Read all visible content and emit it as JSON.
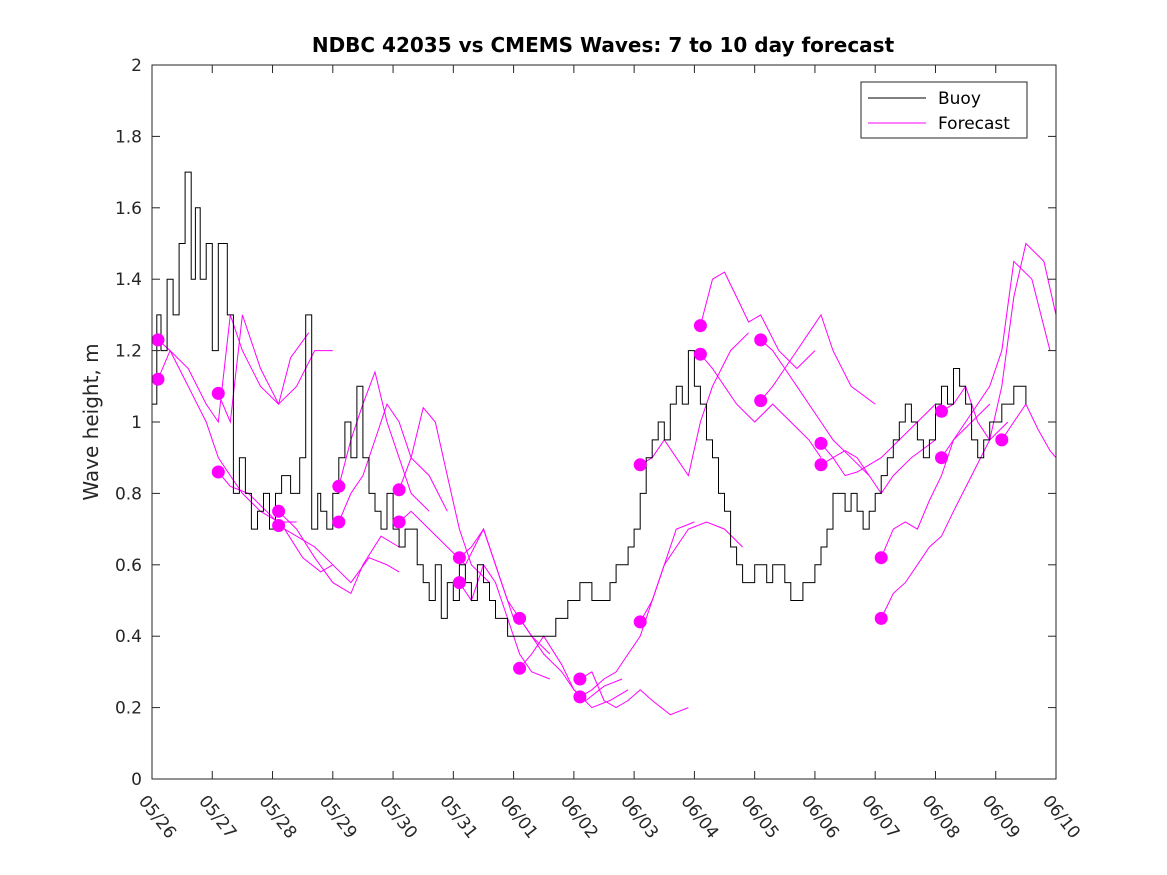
{
  "chart_data": {
    "type": "line",
    "title": "NDBC 42035 vs CMEMS Waves: 7 to 10 day forecast",
    "xlabel": "",
    "ylabel": "Wave height, m",
    "xlim": [
      0,
      15
    ],
    "ylim": [
      0,
      2
    ],
    "x_unit": "days from 05/26",
    "x_ticks": [
      0,
      1,
      2,
      3,
      4,
      5,
      6,
      7,
      8,
      9,
      10,
      11,
      12,
      13,
      14,
      15
    ],
    "x_tick_labels": [
      "05/26",
      "05/27",
      "05/28",
      "05/29",
      "05/30",
      "05/31",
      "06/01",
      "06/02",
      "06/03",
      "06/04",
      "06/05",
      "06/06",
      "06/07",
      "06/08",
      "06/09",
      "06/10"
    ],
    "y_ticks": [
      0,
      0.2,
      0.4,
      0.6,
      0.8,
      1,
      1.2,
      1.4,
      1.6,
      1.8,
      2
    ],
    "y_tick_labels": [
      "0",
      "0.2",
      "0.4",
      "0.6",
      "0.8",
      "1",
      "1.2",
      "1.4",
      "1.6",
      "1.8",
      "2"
    ],
    "grid": false,
    "legend": {
      "placement": "top-right",
      "entries": [
        "Buoy",
        "Forecast"
      ]
    },
    "colors": {
      "buoy": "#000000",
      "forecast": "#ff00ff"
    },
    "buoy": {
      "name": "Buoy",
      "x": [
        0,
        0.08,
        0.15,
        0.25,
        0.35,
        0.45,
        0.55,
        0.65,
        0.72,
        0.8,
        0.9,
        1.0,
        1.1,
        1.25,
        1.35,
        1.45,
        1.55,
        1.65,
        1.75,
        1.85,
        1.95,
        2.05,
        2.15,
        2.3,
        2.45,
        2.55,
        2.65,
        2.75,
        2.8,
        2.9,
        3.0,
        3.1,
        3.2,
        3.3,
        3.4,
        3.5,
        3.6,
        3.7,
        3.8,
        3.9,
        4.0,
        4.1,
        4.2,
        4.3,
        4.4,
        4.5,
        4.6,
        4.7,
        4.8,
        4.9,
        5.0,
        5.1,
        5.2,
        5.3,
        5.4,
        5.5,
        5.6,
        5.7,
        5.8,
        5.9,
        6.0,
        6.1,
        6.2,
        6.3,
        6.5,
        6.7,
        6.9,
        7.0,
        7.1,
        7.2,
        7.3,
        7.4,
        7.5,
        7.6,
        7.7,
        7.8,
        7.9,
        8.0,
        8.1,
        8.2,
        8.3,
        8.4,
        8.5,
        8.6,
        8.7,
        8.8,
        8.9,
        9.0,
        9.1,
        9.2,
        9.3,
        9.4,
        9.5,
        9.6,
        9.7,
        9.8,
        9.9,
        10.0,
        10.1,
        10.2,
        10.3,
        10.4,
        10.5,
        10.6,
        10.7,
        10.8,
        10.9,
        11.0,
        11.1,
        11.2,
        11.3,
        11.4,
        11.5,
        11.6,
        11.7,
        11.8,
        11.9,
        12.0,
        12.1,
        12.2,
        12.3,
        12.4,
        12.5,
        12.6,
        12.7,
        12.8,
        12.9,
        13.0,
        13.1,
        13.2,
        13.3,
        13.4,
        13.5,
        13.6,
        13.7,
        13.8,
        13.9,
        14.0,
        14.1,
        14.2,
        14.3,
        14.4,
        14.5
      ],
      "values": [
        1.05,
        1.3,
        1.2,
        1.4,
        1.3,
        1.5,
        1.7,
        1.4,
        1.6,
        1.4,
        1.5,
        1.2,
        1.5,
        1.3,
        0.8,
        0.9,
        0.8,
        0.7,
        0.75,
        0.8,
        0.7,
        0.8,
        0.85,
        0.8,
        0.9,
        1.3,
        0.7,
        0.8,
        0.75,
        0.7,
        0.8,
        0.9,
        1.0,
        0.9,
        1.1,
        0.9,
        0.8,
        0.75,
        0.7,
        0.8,
        0.7,
        0.65,
        0.7,
        0.7,
        0.6,
        0.55,
        0.5,
        0.6,
        0.45,
        0.55,
        0.5,
        0.6,
        0.55,
        0.5,
        0.6,
        0.55,
        0.5,
        0.45,
        0.45,
        0.4,
        0.4,
        0.4,
        0.4,
        0.4,
        0.4,
        0.45,
        0.5,
        0.5,
        0.55,
        0.55,
        0.5,
        0.5,
        0.5,
        0.55,
        0.6,
        0.6,
        0.65,
        0.7,
        0.8,
        0.9,
        0.95,
        1.0,
        0.95,
        1.05,
        1.1,
        1.05,
        1.2,
        1.1,
        1.05,
        0.95,
        0.9,
        0.8,
        0.75,
        0.65,
        0.6,
        0.55,
        0.55,
        0.6,
        0.6,
        0.55,
        0.6,
        0.6,
        0.55,
        0.5,
        0.5,
        0.55,
        0.55,
        0.6,
        0.65,
        0.7,
        0.8,
        0.8,
        0.75,
        0.8,
        0.75,
        0.7,
        0.75,
        0.8,
        0.85,
        0.9,
        0.95,
        1.0,
        1.05,
        1.0,
        0.95,
        0.9,
        0.95,
        1.05,
        1.1,
        1.05,
        1.15,
        1.1,
        1.05,
        0.95,
        0.9,
        0.95,
        1.0,
        1.0,
        1.05,
        1.05,
        1.1,
        1.1,
        1.05
      ]
    },
    "forecasts": [
      {
        "x": [
          0.1,
          0.3,
          0.6,
          0.9,
          1.1,
          1.3,
          1.5,
          1.8,
          2.1,
          2.4
        ],
        "values": [
          1.23,
          1.2,
          1.1,
          1.0,
          0.9,
          0.85,
          0.8,
          0.75,
          0.72,
          0.72
        ]
      },
      {
        "x": [
          0.1,
          0.3,
          0.6,
          0.9,
          1.1,
          1.3,
          1.5,
          1.8,
          2.1,
          2.3,
          2.6
        ],
        "values": [
          1.12,
          1.2,
          1.15,
          1.05,
          1.0,
          1.3,
          1.2,
          1.1,
          1.05,
          1.18,
          1.25
        ]
      },
      {
        "x": [
          1.1,
          1.3,
          1.5,
          1.8,
          2.1,
          2.4,
          2.7,
          3.0
        ],
        "values": [
          1.08,
          1.0,
          1.3,
          1.15,
          1.05,
          1.1,
          1.2,
          1.2
        ]
      },
      {
        "x": [
          1.1,
          1.3,
          1.6,
          1.9,
          2.2,
          2.5,
          2.8,
          3.0
        ],
        "values": [
          0.86,
          0.82,
          0.8,
          0.75,
          0.7,
          0.62,
          0.58,
          0.6
        ]
      },
      {
        "x": [
          2.1,
          2.4,
          2.7,
          3.0,
          3.3,
          3.5,
          3.8,
          4.1
        ],
        "values": [
          0.75,
          0.7,
          0.62,
          0.55,
          0.52,
          0.6,
          0.68,
          0.65
        ]
      },
      {
        "x": [
          2.1,
          2.4,
          2.7,
          3.0,
          3.3,
          3.6,
          3.9,
          4.1
        ],
        "values": [
          0.71,
          0.68,
          0.65,
          0.6,
          0.55,
          0.62,
          0.6,
          0.58
        ]
      },
      {
        "x": [
          3.1,
          3.3,
          3.5,
          3.7,
          3.9,
          4.1,
          4.3,
          4.6
        ],
        "values": [
          0.82,
          0.95,
          1.05,
          1.14,
          1.0,
          0.9,
          0.8,
          0.75
        ]
      },
      {
        "x": [
          3.1,
          3.3,
          3.5,
          3.7,
          3.9,
          4.1,
          4.3,
          4.6,
          4.9
        ],
        "values": [
          0.72,
          0.8,
          0.85,
          0.95,
          1.05,
          1.0,
          0.9,
          0.85,
          0.75
        ]
      },
      {
        "x": [
          4.1,
          4.3,
          4.5,
          4.7,
          4.9,
          5.1,
          5.3,
          5.6
        ],
        "values": [
          0.81,
          0.9,
          1.04,
          1.0,
          0.85,
          0.7,
          0.6,
          0.55
        ]
      },
      {
        "x": [
          4.1,
          4.3,
          4.6,
          4.9,
          5.2,
          5.5,
          5.8,
          6.0
        ],
        "values": [
          0.72,
          0.75,
          0.7,
          0.65,
          0.6,
          0.7,
          0.55,
          0.45
        ]
      },
      {
        "x": [
          5.1,
          5.3,
          5.5,
          5.7,
          5.9,
          6.1,
          6.3,
          6.6
        ],
        "values": [
          0.62,
          0.65,
          0.7,
          0.6,
          0.5,
          0.45,
          0.4,
          0.35
        ]
      },
      {
        "x": [
          5.1,
          5.3,
          5.5,
          5.7,
          5.9,
          6.1,
          6.3,
          6.6
        ],
        "values": [
          0.55,
          0.5,
          0.6,
          0.55,
          0.45,
          0.35,
          0.3,
          0.28
        ]
      },
      {
        "x": [
          6.1,
          6.3,
          6.5,
          6.8,
          7.0,
          7.2,
          7.5,
          7.8
        ],
        "values": [
          0.45,
          0.4,
          0.35,
          0.3,
          0.25,
          0.22,
          0.26,
          0.28
        ]
      },
      {
        "x": [
          6.1,
          6.3,
          6.5,
          6.8,
          7.0,
          7.3,
          7.6,
          7.9
        ],
        "values": [
          0.31,
          0.35,
          0.4,
          0.32,
          0.25,
          0.2,
          0.22,
          0.25
        ]
      },
      {
        "x": [
          7.1,
          7.3,
          7.5,
          7.7,
          7.9,
          8.1,
          8.3,
          8.6,
          8.9
        ],
        "values": [
          0.28,
          0.3,
          0.22,
          0.2,
          0.22,
          0.25,
          0.22,
          0.18,
          0.2
        ]
      },
      {
        "x": [
          7.1,
          7.3,
          7.5,
          7.7,
          7.9,
          8.1,
          8.3,
          8.5,
          8.7,
          9.0
        ],
        "values": [
          0.23,
          0.25,
          0.28,
          0.3,
          0.35,
          0.4,
          0.5,
          0.6,
          0.7,
          0.72
        ]
      },
      {
        "x": [
          8.1,
          8.3,
          8.5,
          8.7,
          8.9,
          9.1,
          9.3,
          9.6,
          9.9
        ],
        "values": [
          0.88,
          0.9,
          0.95,
          0.9,
          0.85,
          1.0,
          1.1,
          1.2,
          1.25
        ]
      },
      {
        "x": [
          8.1,
          8.3,
          8.5,
          8.7,
          8.9,
          9.2,
          9.5,
          9.8
        ],
        "values": [
          0.44,
          0.5,
          0.6,
          0.65,
          0.7,
          0.72,
          0.7,
          0.65
        ]
      },
      {
        "x": [
          9.1,
          9.3,
          9.5,
          9.7,
          9.9,
          10.1,
          10.4,
          10.7,
          11.0
        ],
        "values": [
          1.27,
          1.4,
          1.42,
          1.35,
          1.28,
          1.3,
          1.2,
          1.15,
          1.2
        ]
      },
      {
        "x": [
          9.1,
          9.3,
          9.5,
          9.7,
          10.0,
          10.3,
          10.6,
          10.9,
          11.1
        ],
        "values": [
          1.19,
          1.15,
          1.1,
          1.05,
          1.0,
          1.05,
          1.0,
          0.95,
          0.9
        ]
      },
      {
        "x": [
          10.1,
          10.3,
          10.5,
          10.7,
          10.9,
          11.1,
          11.3,
          11.6,
          11.9
        ],
        "values": [
          1.23,
          1.2,
          1.15,
          1.1,
          1.05,
          1.0,
          0.95,
          0.9,
          0.85
        ]
      },
      {
        "x": [
          10.1,
          10.3,
          10.5,
          10.7,
          10.9,
          11.1,
          11.3,
          11.6,
          12.0
        ],
        "values": [
          1.06,
          1.1,
          1.15,
          1.2,
          1.25,
          1.3,
          1.2,
          1.1,
          1.05
        ]
      },
      {
        "x": [
          11.1,
          11.3,
          11.5,
          11.7,
          11.9,
          12.1,
          12.4,
          12.7,
          13.0
        ],
        "values": [
          0.94,
          0.9,
          0.85,
          0.86,
          0.88,
          0.9,
          0.95,
          1.0,
          1.05
        ]
      },
      {
        "x": [
          11.1,
          11.3,
          11.5,
          11.7,
          11.9,
          12.1,
          12.3,
          12.6,
          13.0
        ],
        "values": [
          0.88,
          0.9,
          0.92,
          0.9,
          0.85,
          0.8,
          0.85,
          0.9,
          0.95
        ]
      },
      {
        "x": [
          12.1,
          12.3,
          12.5,
          12.7,
          12.9,
          13.1,
          13.3,
          13.6,
          13.9
        ],
        "values": [
          0.62,
          0.7,
          0.72,
          0.7,
          0.78,
          0.85,
          0.95,
          1.0,
          1.05
        ]
      },
      {
        "x": [
          12.1,
          12.3,
          12.5,
          12.7,
          12.9,
          13.1,
          13.3,
          13.6,
          13.9,
          14.2
        ],
        "values": [
          0.45,
          0.52,
          0.55,
          0.6,
          0.65,
          0.68,
          0.75,
          0.85,
          0.95,
          1.0
        ]
      },
      {
        "x": [
          13.1,
          13.3,
          13.5,
          13.7,
          13.9,
          14.1,
          14.3,
          14.5,
          14.8,
          15.0
        ],
        "values": [
          1.03,
          1.05,
          1.1,
          1.0,
          0.95,
          1.1,
          1.35,
          1.5,
          1.45,
          1.3
        ]
      },
      {
        "x": [
          13.1,
          13.3,
          13.5,
          13.7,
          13.9,
          14.1,
          14.3,
          14.6,
          14.9
        ],
        "values": [
          0.9,
          0.95,
          1.0,
          1.05,
          1.1,
          1.2,
          1.45,
          1.4,
          1.2
        ]
      },
      {
        "x": [
          14.1,
          14.3,
          14.5,
          14.7,
          14.9,
          15.0
        ],
        "values": [
          0.95,
          1.0,
          1.05,
          0.98,
          0.92,
          0.9
        ]
      }
    ],
    "markers": [
      {
        "x": 0.1,
        "y": 1.23
      },
      {
        "x": 0.1,
        "y": 1.12
      },
      {
        "x": 1.1,
        "y": 1.08
      },
      {
        "x": 1.1,
        "y": 0.86
      },
      {
        "x": 2.1,
        "y": 0.75
      },
      {
        "x": 2.1,
        "y": 0.71
      },
      {
        "x": 3.1,
        "y": 0.82
      },
      {
        "x": 3.1,
        "y": 0.72
      },
      {
        "x": 4.1,
        "y": 0.81
      },
      {
        "x": 4.1,
        "y": 0.72
      },
      {
        "x": 5.1,
        "y": 0.62
      },
      {
        "x": 5.1,
        "y": 0.55
      },
      {
        "x": 6.1,
        "y": 0.45
      },
      {
        "x": 6.1,
        "y": 0.31
      },
      {
        "x": 7.1,
        "y": 0.28
      },
      {
        "x": 7.1,
        "y": 0.23
      },
      {
        "x": 8.1,
        "y": 0.88
      },
      {
        "x": 8.1,
        "y": 0.44
      },
      {
        "x": 9.1,
        "y": 1.27
      },
      {
        "x": 9.1,
        "y": 1.19
      },
      {
        "x": 10.1,
        "y": 1.23
      },
      {
        "x": 10.1,
        "y": 1.06
      },
      {
        "x": 11.1,
        "y": 0.94
      },
      {
        "x": 11.1,
        "y": 0.88
      },
      {
        "x": 12.1,
        "y": 0.62
      },
      {
        "x": 12.1,
        "y": 0.45
      },
      {
        "x": 13.1,
        "y": 1.03
      },
      {
        "x": 13.1,
        "y": 0.9
      },
      {
        "x": 14.1,
        "y": 0.95
      }
    ]
  }
}
